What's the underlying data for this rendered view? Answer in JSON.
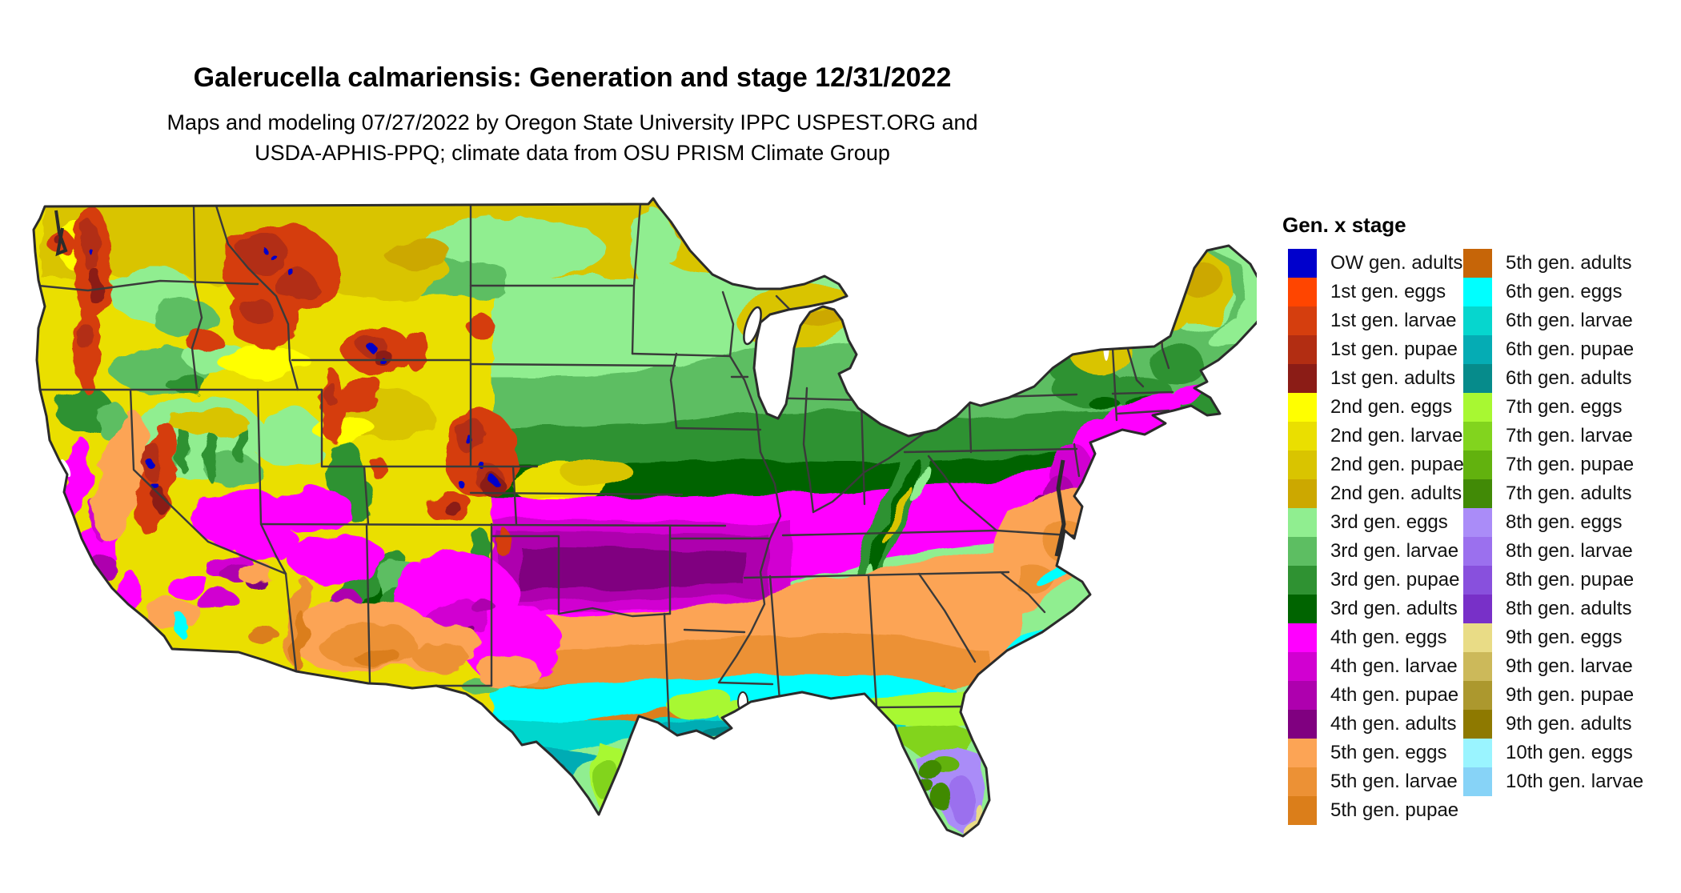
{
  "title": "Galerucella calmariensis: Generation and stage 12/31/2022",
  "subtitle_line1": "Maps and modeling 07/27/2022 by Oregon State University IPPC USPEST.ORG and",
  "subtitle_line2": "USDA-APHIS-PPQ; climate data from OSU PRISM Climate Group",
  "legend": {
    "header": "Gen. x stage",
    "left_column": [
      {
        "label": "OW gen. adults",
        "color": "#0000CC"
      },
      {
        "label": "1st gen. eggs",
        "color": "#FF4500"
      },
      {
        "label": "1st gen. larvae",
        "color": "#D53E0E"
      },
      {
        "label": "1st gen. pupae",
        "color": "#B22D12"
      },
      {
        "label": "1st gen. adults",
        "color": "#8B1C16"
      },
      {
        "label": "2nd gen. eggs",
        "color": "#FFFF00"
      },
      {
        "label": "2nd gen. larvae",
        "color": "#EADF00"
      },
      {
        "label": "2nd gen. pupae",
        "color": "#D9C400"
      },
      {
        "label": "2nd gen. adults",
        "color": "#CCA800"
      },
      {
        "label": "3rd gen. eggs",
        "color": "#90EE90"
      },
      {
        "label": "3rd gen. larvae",
        "color": "#5DBE62"
      },
      {
        "label": "3rd gen. pupae",
        "color": "#2F9232"
      },
      {
        "label": "3rd gen. adults",
        "color": "#006400"
      },
      {
        "label": "4th gen. eggs",
        "color": "#FF00FF"
      },
      {
        "label": "4th gen. larvae",
        "color": "#D100D1"
      },
      {
        "label": "4th gen. pupae",
        "color": "#AE00AE"
      },
      {
        "label": "4th gen. adults",
        "color": "#800080"
      },
      {
        "label": "5th gen. eggs",
        "color": "#FCA455"
      },
      {
        "label": "5th gen. larvae",
        "color": "#EC9135"
      },
      {
        "label": "5th gen. pupae",
        "color": "#DB7E1A"
      }
    ],
    "right_column": [
      {
        "label": "5th gen. adults",
        "color": "#C66508"
      },
      {
        "label": "6th gen. eggs",
        "color": "#00FFFF"
      },
      {
        "label": "6th gen. larvae",
        "color": "#06D6CE"
      },
      {
        "label": "6th gen. pupae",
        "color": "#05ACB4"
      },
      {
        "label": "6th gen. adults",
        "color": "#068B8B"
      },
      {
        "label": "7th gen. eggs",
        "color": "#A8F832"
      },
      {
        "label": "7th gen. larvae",
        "color": "#82D41E"
      },
      {
        "label": "7th gen. pupae",
        "color": "#62B20E"
      },
      {
        "label": "7th gen. adults",
        "color": "#418A06"
      },
      {
        "label": "8th gen. eggs",
        "color": "#AA8CF8"
      },
      {
        "label": "8th gen. larvae",
        "color": "#9B70EE"
      },
      {
        "label": "8th gen. pupae",
        "color": "#8850DD"
      },
      {
        "label": "8th gen. adults",
        "color": "#7830C8"
      },
      {
        "label": "9th gen. eggs",
        "color": "#E9DC86"
      },
      {
        "label": "9th gen. larvae",
        "color": "#CCB95A"
      },
      {
        "label": "9th gen. pupae",
        "color": "#AC982E"
      },
      {
        "label": "9th gen. adults",
        "color": "#8E7900"
      },
      {
        "label": "10th gen. eggs",
        "color": "#9AF4FF"
      },
      {
        "label": "10th gen. larvae",
        "color": "#87D3F7"
      }
    ]
  },
  "map": {
    "background": "#FFFFFF",
    "outline_color": "#2B2B2B",
    "state_border_color": "#3A3A3A",
    "water_color": "#FFFFFF",
    "palette": {
      "ow_adults": "#0000CC",
      "g1_eggs": "#FF4500",
      "g1_larvae": "#D53E0E",
      "g1_pupae": "#B22D12",
      "g1_adults": "#8B1C16",
      "g2_eggs": "#FFFF00",
      "g2_larvae": "#EADF00",
      "g2_pupae": "#D9C400",
      "g2_adults": "#CCA800",
      "g3_eggs": "#90EE90",
      "g3_larvae": "#5DBE62",
      "g3_pupae": "#2F9232",
      "g3_adults": "#006400",
      "g4_eggs": "#FF00FF",
      "g4_larvae": "#D100D1",
      "g4_pupae": "#AE00AE",
      "g4_adults": "#800080",
      "g5_eggs": "#FCA455",
      "g5_larvae": "#EC9135",
      "g5_pupae": "#DB7E1A",
      "g5_adults": "#C66508",
      "g6_eggs": "#00FFFF",
      "g6_larvae": "#06D6CE",
      "g6_pupae": "#05ACB4",
      "g6_adults": "#068B8B",
      "g7_eggs": "#A8F832",
      "g7_larvae": "#82D41E",
      "g7_pupae": "#62B20E",
      "g7_adults": "#418A06",
      "g8_eggs": "#AA8CF8",
      "g8_larvae": "#9B70EE",
      "g8_pupae": "#8850DD",
      "g8_adults": "#7830C8",
      "g9_eggs": "#E9DC86",
      "g9_larvae": "#CCB95A",
      "g9_pupae": "#AC982E",
      "g9_adults": "#8E7900",
      "g10_eggs": "#9AF4FF",
      "g10_larvae": "#87D3F7"
    }
  }
}
